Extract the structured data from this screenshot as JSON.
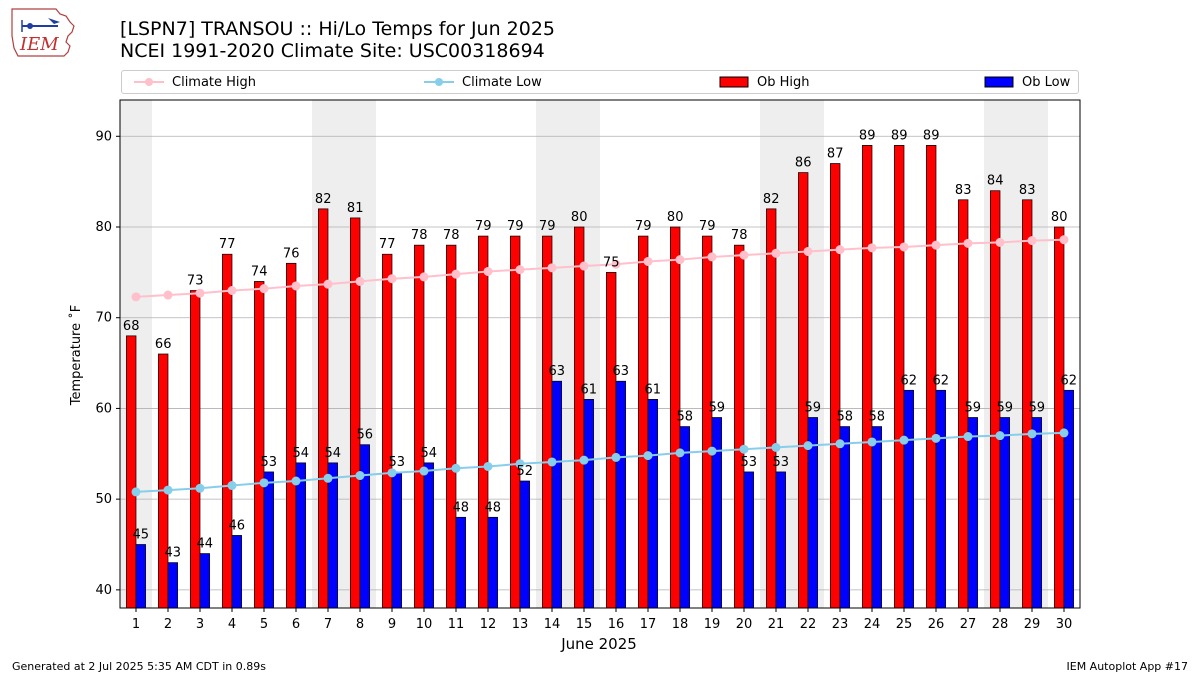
{
  "header": {
    "logo_text": "IEM",
    "title_line1": "[LSPN7] TRANSOU :: Hi/Lo Temps for Jun 2025",
    "title_line2": "NCEI 1991-2020 Climate Site: USC00318694"
  },
  "footer": {
    "generated": "Generated at 2 Jul 2025 5:35 AM CDT in 0.89s",
    "app": "IEM Autoplot App #17"
  },
  "colors": {
    "ob_high": "#ff0000",
    "ob_low": "#0000ff",
    "climate_high": "#ffc0cb",
    "climate_low": "#87ceeb",
    "weekend_shade": "#eeeeee",
    "grid": "#b0b0b0"
  },
  "chart_data": {
    "type": "bar",
    "xlabel": "June 2025",
    "ylabel": "Temperature ˚F",
    "ylim": [
      38,
      94
    ],
    "yticks": [
      40,
      50,
      60,
      70,
      80,
      90
    ],
    "grid": true,
    "legend_position": "top",
    "categories": [
      "1",
      "2",
      "3",
      "4",
      "5",
      "6",
      "7",
      "8",
      "9",
      "10",
      "11",
      "12",
      "13",
      "14",
      "15",
      "16",
      "17",
      "18",
      "19",
      "20",
      "21",
      "22",
      "23",
      "24",
      "25",
      "26",
      "27",
      "28",
      "29",
      "30"
    ],
    "shaded_days": [
      1,
      7,
      8,
      14,
      15,
      21,
      22,
      28,
      29
    ],
    "series": [
      {
        "name": "Ob High",
        "kind": "bar",
        "values": [
          68,
          66,
          73,
          77,
          74,
          76,
          82,
          81,
          77,
          78,
          78,
          79,
          79,
          79,
          80,
          75,
          79,
          80,
          79,
          78,
          82,
          86,
          87,
          89,
          89,
          89,
          83,
          84,
          83,
          80
        ]
      },
      {
        "name": "Ob Low",
        "kind": "bar",
        "values": [
          45,
          43,
          44,
          46,
          53,
          54,
          54,
          56,
          53,
          54,
          48,
          48,
          52,
          63,
          61,
          63,
          61,
          58,
          59,
          53,
          53,
          59,
          58,
          58,
          62,
          62,
          59,
          59,
          59,
          62
        ]
      },
      {
        "name": "Climate High",
        "kind": "line",
        "values": [
          72.3,
          72.5,
          72.7,
          73.0,
          73.2,
          73.5,
          73.7,
          74.0,
          74.3,
          74.5,
          74.8,
          75.1,
          75.3,
          75.5,
          75.7,
          75.9,
          76.2,
          76.4,
          76.7,
          76.9,
          77.1,
          77.3,
          77.5,
          77.7,
          77.8,
          78.0,
          78.2,
          78.3,
          78.5,
          78.6
        ]
      },
      {
        "name": "Climate Low",
        "kind": "line",
        "values": [
          50.8,
          51.0,
          51.2,
          51.5,
          51.8,
          52.0,
          52.3,
          52.6,
          52.9,
          53.1,
          53.4,
          53.6,
          53.9,
          54.1,
          54.3,
          54.6,
          54.8,
          55.1,
          55.3,
          55.5,
          55.7,
          55.9,
          56.1,
          56.3,
          56.5,
          56.7,
          56.9,
          57.0,
          57.2,
          57.3
        ]
      }
    ]
  }
}
